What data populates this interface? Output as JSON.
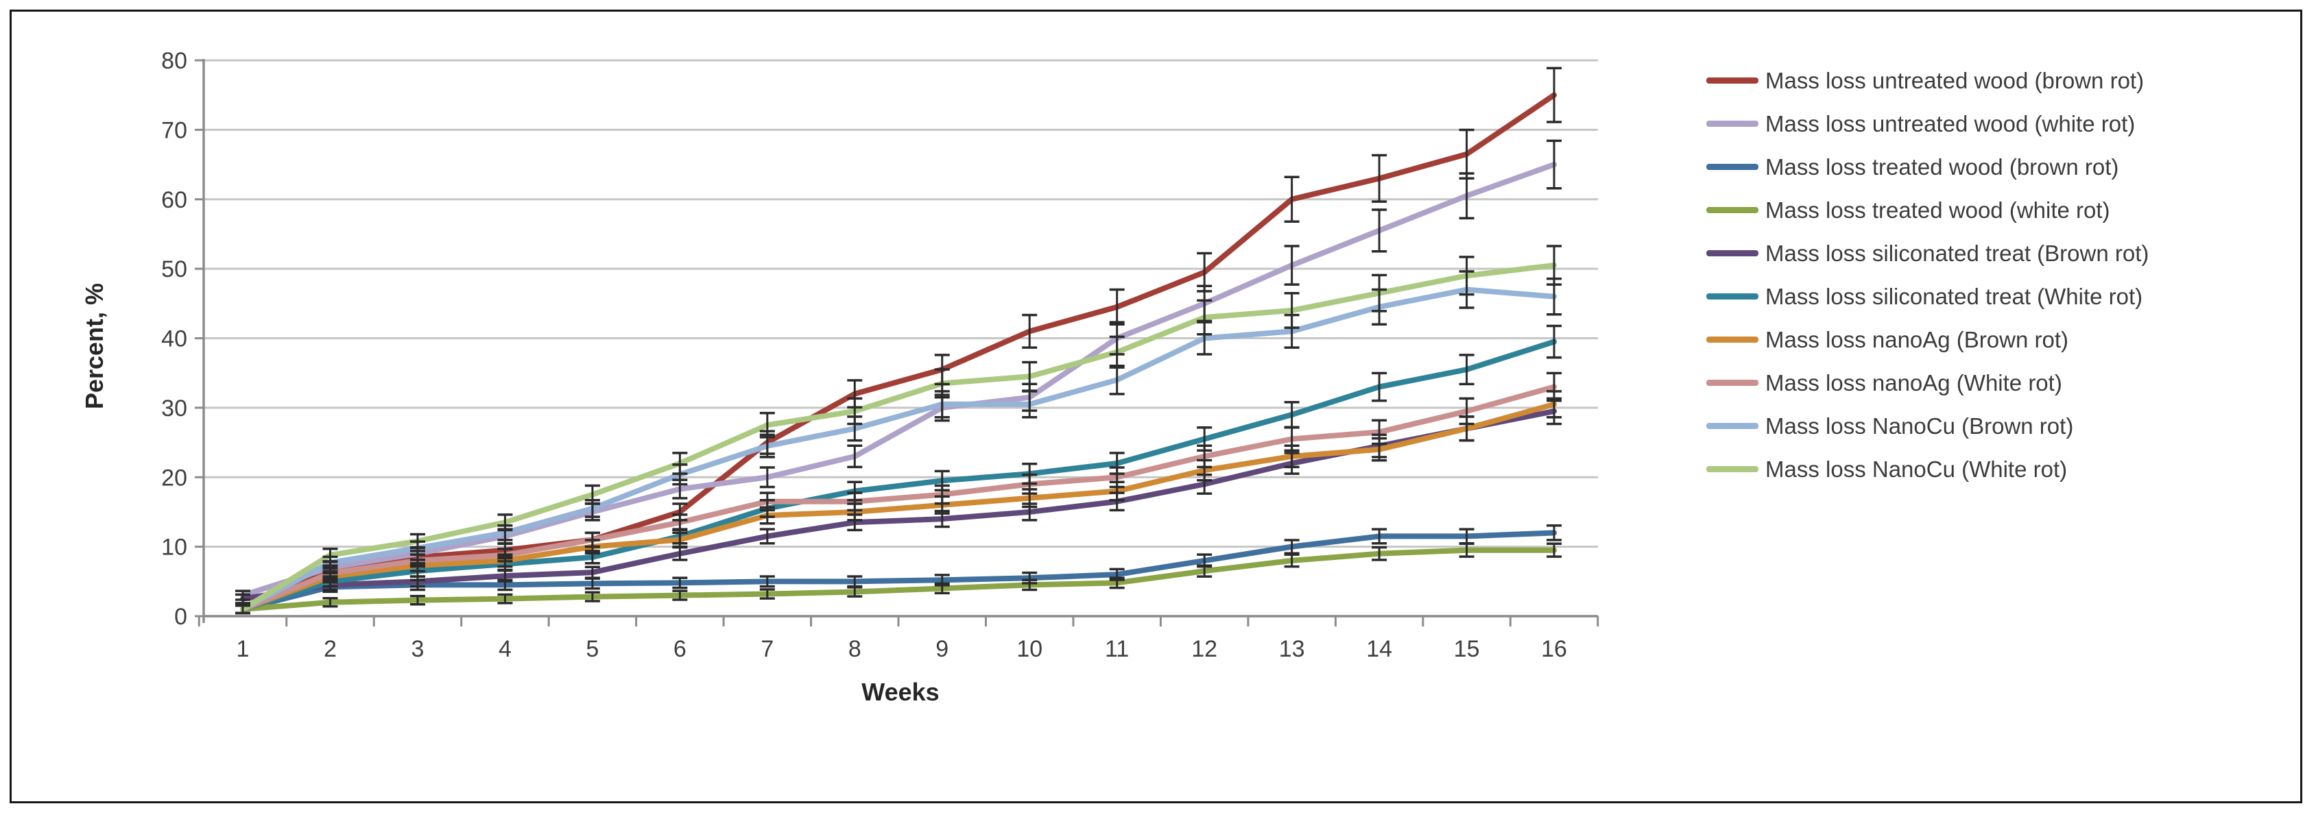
{
  "figure": {
    "background_color": "#FFFFFF",
    "frame_border_color": "#161616",
    "gridline_color": "#C6C6C6",
    "axis_color": "#8C8C8C",
    "tick_label_color": "#3F3F3F",
    "axis_title_color": "#262626",
    "error_bar_color": "#2B2B2B"
  },
  "chart_data": {
    "type": "line",
    "title": "",
    "xlabel": "Weeks",
    "ylabel": "Percent, %",
    "x": [
      1,
      2,
      3,
      4,
      5,
      6,
      7,
      8,
      9,
      10,
      11,
      12,
      13,
      14,
      15,
      16
    ],
    "ylim": [
      0,
      80
    ],
    "ytick_step": 10,
    "grid": "horizontal",
    "legend_position": "right",
    "error_bars": "small vertical error bars with caps on every point, magnitude roughly 0.5 + 4.5% of value",
    "series": [
      {
        "name": "Mass loss untreated wood (brown rot)",
        "color": "#A23E36",
        "values": [
          1,
          6.5,
          8.5,
          9.5,
          11,
          15,
          25,
          32,
          35.5,
          41,
          44.5,
          49.5,
          60,
          63,
          66.5,
          75
        ]
      },
      {
        "name": "Mass loss untreated wood (white rot)",
        "color": "#AEA2C9",
        "values": [
          3,
          7,
          9,
          11.5,
          15,
          18.3,
          20,
          23,
          30,
          31.5,
          40,
          45,
          50.5,
          55.5,
          60.5,
          65
        ]
      },
      {
        "name": "Mass loss treated wood (brown rot)",
        "color": "#40709E",
        "values": [
          1,
          4.2,
          4.5,
          4.5,
          4.7,
          4.8,
          5,
          5,
          5.2,
          5.5,
          6,
          8,
          10,
          11.5,
          11.5,
          12
        ]
      },
      {
        "name": "Mass loss treated wood (white rot)",
        "color": "#8BA446",
        "values": [
          1,
          2,
          2.3,
          2.5,
          2.8,
          3,
          3.2,
          3.5,
          4,
          4.5,
          4.8,
          6.5,
          8,
          9,
          9.5,
          9.5
        ]
      },
      {
        "name": "Mass loss siliconated treat (Brown rot)",
        "color": "#5F497A",
        "values": [
          2.5,
          4.5,
          5,
          5.8,
          6.3,
          9,
          11.5,
          13.5,
          14,
          15,
          16.5,
          19,
          22,
          24.5,
          27,
          29.5
        ]
      },
      {
        "name": "Mass loss siliconated treat (White rot)",
        "color": "#2F8398",
        "values": [
          1,
          5,
          6.5,
          7.5,
          8.5,
          11.5,
          15.5,
          18,
          19.5,
          20.5,
          22,
          25.5,
          29,
          33,
          35.5,
          39.5
        ]
      },
      {
        "name": "Mass loss nanoAg (Brown rot)",
        "color": "#D08A33",
        "values": [
          1,
          5.7,
          7.3,
          8,
          10,
          11,
          14.5,
          15,
          16,
          17,
          18,
          21,
          23,
          24,
          27,
          30.5
        ]
      },
      {
        "name": "Mass loss nanoAg (White rot)",
        "color": "#C9908F",
        "values": [
          1,
          6.2,
          8,
          8.8,
          11,
          13.5,
          16.5,
          16.5,
          17.5,
          19,
          20,
          23,
          25.5,
          26.5,
          29.5,
          33
        ]
      },
      {
        "name": "Mass loss NanoCu (Brown rot)",
        "color": "#95B3D7",
        "values": [
          1,
          7.7,
          9.8,
          12,
          15.5,
          20.4,
          24.5,
          27,
          30.5,
          30.5,
          34,
          40,
          41,
          44.5,
          47,
          46
        ]
      },
      {
        "name": "Mass loss NanoCu (White rot)",
        "color": "#ACC981",
        "values": [
          1,
          8.8,
          10.8,
          13.5,
          17.5,
          22,
          27.5,
          29.5,
          33.5,
          34.5,
          38,
          43,
          44,
          46.5,
          49,
          50.5
        ]
      }
    ]
  }
}
